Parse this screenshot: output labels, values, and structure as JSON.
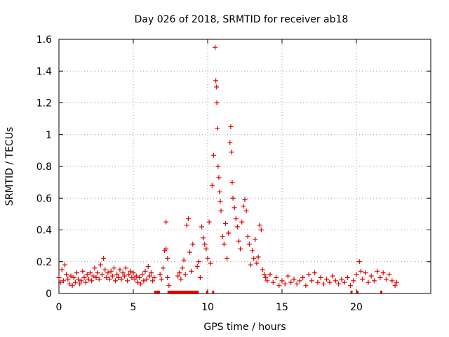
{
  "chart_data": {
    "type": "scatter",
    "title": "Day 026 of 2018, SRMTID for receiver ab18",
    "xlabel": "GPS time / hours",
    "ylabel": "SRMTID / TECUs",
    "xlim": [
      0,
      25
    ],
    "ylim": [
      0,
      1.6
    ],
    "xticks": [
      0,
      5,
      10,
      15,
      20
    ],
    "xtick_labels": [
      "0",
      "5",
      "10",
      "15",
      "20"
    ],
    "yticks": [
      0,
      0.2,
      0.4,
      0.6,
      0.8,
      1.0,
      1.2,
      1.4,
      1.6
    ],
    "ytick_labels": [
      "0",
      "0.2",
      "0.4",
      "0.6",
      "0.8",
      "1",
      "1.2",
      "1.4",
      "1.6"
    ],
    "grid": true,
    "series": [
      {
        "name": "SRMTID",
        "marker": "plus",
        "color": "#e00000",
        "points": [
          [
            0.0,
            0.1
          ],
          [
            0.1,
            0.07
          ],
          [
            0.2,
            0.15
          ],
          [
            0.3,
            0.08
          ],
          [
            0.4,
            0.18
          ],
          [
            0.5,
            0.12
          ],
          [
            0.6,
            0.09
          ],
          [
            0.7,
            0.06
          ],
          [
            0.8,
            0.11
          ],
          [
            0.9,
            0.05
          ],
          [
            1.0,
            0.1
          ],
          [
            1.1,
            0.07
          ],
          [
            1.2,
            0.13
          ],
          [
            1.3,
            0.09
          ],
          [
            1.4,
            0.06
          ],
          [
            1.5,
            0.08
          ],
          [
            1.6,
            0.14
          ],
          [
            1.7,
            0.1
          ],
          [
            1.8,
            0.07
          ],
          [
            1.9,
            0.12
          ],
          [
            2.0,
            0.09
          ],
          [
            2.1,
            0.13
          ],
          [
            2.2,
            0.08
          ],
          [
            2.3,
            0.11
          ],
          [
            2.4,
            0.16
          ],
          [
            2.5,
            0.1
          ],
          [
            2.6,
            0.13
          ],
          [
            2.7,
            0.09
          ],
          [
            2.8,
            0.18
          ],
          [
            2.9,
            0.12
          ],
          [
            3.0,
            0.22
          ],
          [
            3.1,
            0.15
          ],
          [
            3.2,
            0.1
          ],
          [
            3.3,
            0.13
          ],
          [
            3.4,
            0.09
          ],
          [
            3.5,
            0.14
          ],
          [
            3.6,
            0.11
          ],
          [
            3.7,
            0.16
          ],
          [
            3.8,
            0.08
          ],
          [
            3.9,
            0.12
          ],
          [
            4.0,
            0.1
          ],
          [
            4.1,
            0.15
          ],
          [
            4.2,
            0.09
          ],
          [
            4.3,
            0.13
          ],
          [
            4.4,
            0.11
          ],
          [
            4.5,
            0.16
          ],
          [
            4.6,
            0.08
          ],
          [
            4.7,
            0.12
          ],
          [
            4.8,
            0.14
          ],
          [
            4.9,
            0.1
          ],
          [
            5.0,
            0.13
          ],
          [
            5.1,
            0.09
          ],
          [
            5.2,
            0.11
          ],
          [
            5.3,
            0.07
          ],
          [
            5.4,
            0.1
          ],
          [
            5.5,
            0.06
          ],
          [
            5.6,
            0.12
          ],
          [
            5.7,
            0.08
          ],
          [
            5.8,
            0.14
          ],
          [
            5.9,
            0.09
          ],
          [
            6.0,
            0.17
          ],
          [
            6.1,
            0.11
          ],
          [
            6.2,
            0.13
          ],
          [
            6.3,
            0.08
          ],
          [
            6.4,
            0.1
          ],
          [
            6.8,
            0.12
          ],
          [
            6.9,
            0.09
          ],
          [
            7.0,
            0.16
          ],
          [
            7.1,
            0.27
          ],
          [
            7.2,
            0.45
          ],
          [
            7.2,
            0.28
          ],
          [
            7.3,
            0.22
          ],
          [
            7.3,
            0.1
          ],
          [
            7.4,
            0.05
          ],
          [
            8.0,
            0.11
          ],
          [
            8.1,
            0.13
          ],
          [
            8.2,
            0.09
          ],
          [
            8.3,
            0.16
          ],
          [
            8.4,
            0.21
          ],
          [
            8.5,
            0.12
          ],
          [
            8.6,
            0.43
          ],
          [
            8.7,
            0.47
          ],
          [
            8.8,
            0.26
          ],
          [
            8.9,
            0.14
          ],
          [
            9.0,
            0.31
          ],
          [
            9.3,
            0.17
          ],
          [
            9.4,
            0.2
          ],
          [
            9.5,
            0.1
          ],
          [
            9.6,
            0.42
          ],
          [
            9.7,
            0.35
          ],
          [
            9.8,
            0.31
          ],
          [
            9.9,
            0.28
          ],
          [
            10.0,
            0.22
          ],
          [
            10.1,
            0.45
          ],
          [
            10.2,
            0.19
          ],
          [
            10.3,
            0.68
          ],
          [
            10.4,
            0.87
          ],
          [
            10.5,
            1.55
          ],
          [
            10.55,
            1.34
          ],
          [
            10.6,
            1.3
          ],
          [
            10.62,
            1.2
          ],
          [
            10.65,
            1.04
          ],
          [
            10.7,
            0.8
          ],
          [
            10.75,
            0.73
          ],
          [
            10.8,
            0.64
          ],
          [
            10.85,
            0.58
          ],
          [
            10.9,
            0.52
          ],
          [
            11.0,
            0.36
          ],
          [
            11.1,
            0.31
          ],
          [
            11.2,
            0.44
          ],
          [
            11.3,
            0.22
          ],
          [
            11.4,
            0.38
          ],
          [
            11.5,
            0.95
          ],
          [
            11.55,
            1.05
          ],
          [
            11.6,
            0.89
          ],
          [
            11.65,
            0.7
          ],
          [
            11.7,
            0.6
          ],
          [
            11.8,
            0.54
          ],
          [
            11.9,
            0.47
          ],
          [
            12.0,
            0.42
          ],
          [
            12.1,
            0.33
          ],
          [
            12.2,
            0.28
          ],
          [
            12.3,
            0.45
          ],
          [
            12.4,
            0.55
          ],
          [
            12.5,
            0.59
          ],
          [
            12.6,
            0.52
          ],
          [
            12.7,
            0.36
          ],
          [
            12.8,
            0.31
          ],
          [
            12.9,
            0.18
          ],
          [
            13.0,
            0.27
          ],
          [
            13.1,
            0.22
          ],
          [
            13.2,
            0.34
          ],
          [
            13.3,
            0.19
          ],
          [
            13.4,
            0.23
          ],
          [
            13.5,
            0.43
          ],
          [
            13.6,
            0.4
          ],
          [
            13.7,
            0.15
          ],
          [
            13.8,
            0.12
          ],
          [
            13.9,
            0.1
          ],
          [
            14.0,
            0.08
          ],
          [
            14.2,
            0.12
          ],
          [
            14.4,
            0.07
          ],
          [
            14.6,
            0.1
          ],
          [
            14.8,
            0.05
          ],
          [
            15.0,
            0.08
          ],
          [
            15.2,
            0.06
          ],
          [
            15.4,
            0.11
          ],
          [
            15.6,
            0.07
          ],
          [
            15.8,
            0.09
          ],
          [
            16.0,
            0.06
          ],
          [
            16.2,
            0.08
          ],
          [
            16.4,
            0.1
          ],
          [
            16.6,
            0.05
          ],
          [
            16.8,
            0.12
          ],
          [
            17.0,
            0.08
          ],
          [
            17.2,
            0.13
          ],
          [
            17.4,
            0.07
          ],
          [
            17.6,
            0.1
          ],
          [
            17.8,
            0.06
          ],
          [
            18.0,
            0.09
          ],
          [
            18.2,
            0.07
          ],
          [
            18.4,
            0.11
          ],
          [
            18.6,
            0.08
          ],
          [
            18.8,
            0.06
          ],
          [
            19.0,
            0.09
          ],
          [
            19.2,
            0.07
          ],
          [
            19.4,
            0.1
          ],
          [
            19.6,
            0.05
          ],
          [
            19.8,
            0.08
          ],
          [
            20.0,
            0.12
          ],
          [
            20.2,
            0.2
          ],
          [
            20.3,
            0.14
          ],
          [
            20.4,
            0.09
          ],
          [
            20.6,
            0.13
          ],
          [
            20.8,
            0.07
          ],
          [
            21.0,
            0.11
          ],
          [
            21.2,
            0.08
          ],
          [
            21.4,
            0.14
          ],
          [
            21.6,
            0.1
          ],
          [
            21.8,
            0.13
          ],
          [
            22.0,
            0.09
          ],
          [
            22.2,
            0.12
          ],
          [
            22.4,
            0.08
          ],
          [
            22.6,
            0.05
          ],
          [
            22.7,
            0.07
          ]
        ]
      }
    ],
    "gaps": [
      [
        6.4,
        6.8
      ],
      [
        7.3,
        9.4
      ],
      [
        9.9,
        10.0
      ],
      [
        10.3,
        10.4
      ],
      [
        19.6,
        19.7
      ],
      [
        20.0,
        20.1
      ],
      [
        21.6,
        21.7
      ]
    ]
  }
}
